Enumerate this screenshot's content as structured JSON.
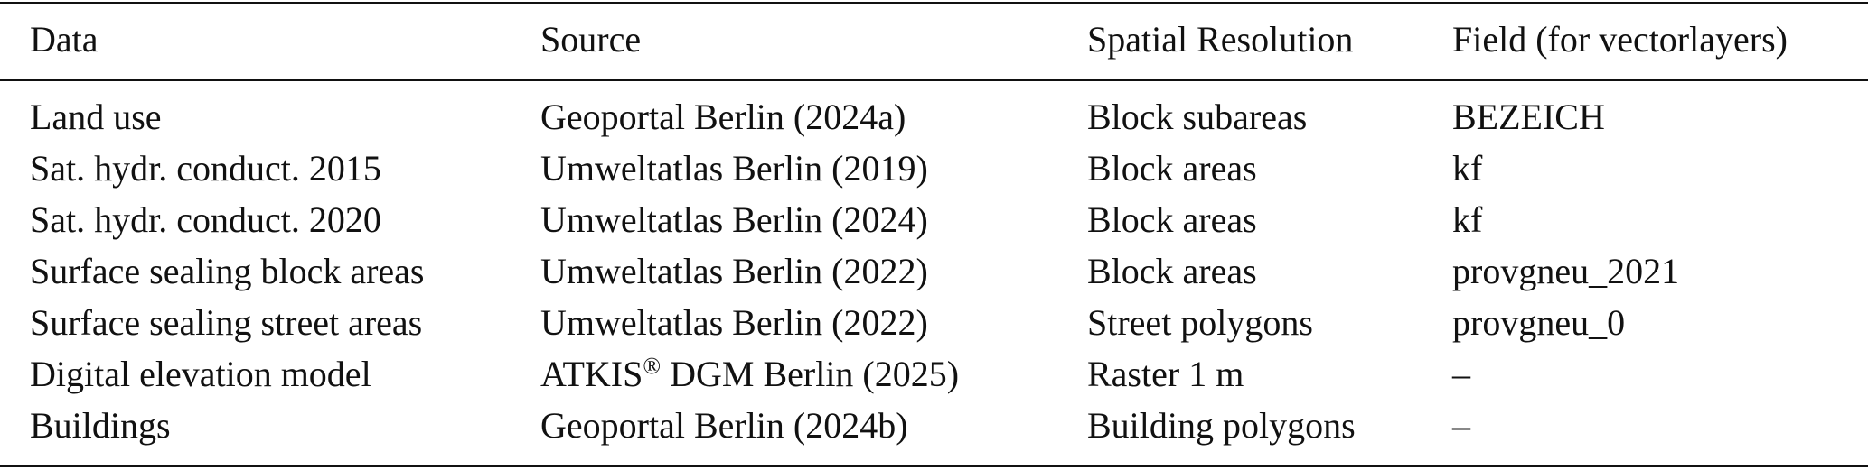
{
  "table": {
    "header": [
      "Data",
      "Source",
      "Spatial Resolution",
      "Field (for vectorlayers)"
    ],
    "rows": [
      [
        "Land use",
        "Geoportal Berlin (2024a)",
        "Block subareas",
        "BEZEICH"
      ],
      [
        "Sat. hydr. conduct. 2015",
        "Umweltatlas Berlin (2019)",
        "Block areas",
        "kf"
      ],
      [
        "Sat. hydr. conduct. 2020",
        "Umweltatlas Berlin (2024)",
        "Block areas",
        "kf"
      ],
      [
        "Surface sealing block areas",
        "Umweltatlas Berlin (2022)",
        "Block areas",
        "provgneu_2021"
      ],
      [
        "Surface sealing street areas",
        "Umweltatlas Berlin (2022)",
        "Street polygons",
        "provgneu_0"
      ],
      [
        "Digital elevation model",
        [
          "ATKIS",
          "®",
          " DGM Berlin (2025)"
        ],
        "Raster 1 m",
        "–"
      ],
      [
        "Buildings",
        "Geoportal Berlin (2024b)",
        "Building polygons",
        "–"
      ]
    ]
  }
}
